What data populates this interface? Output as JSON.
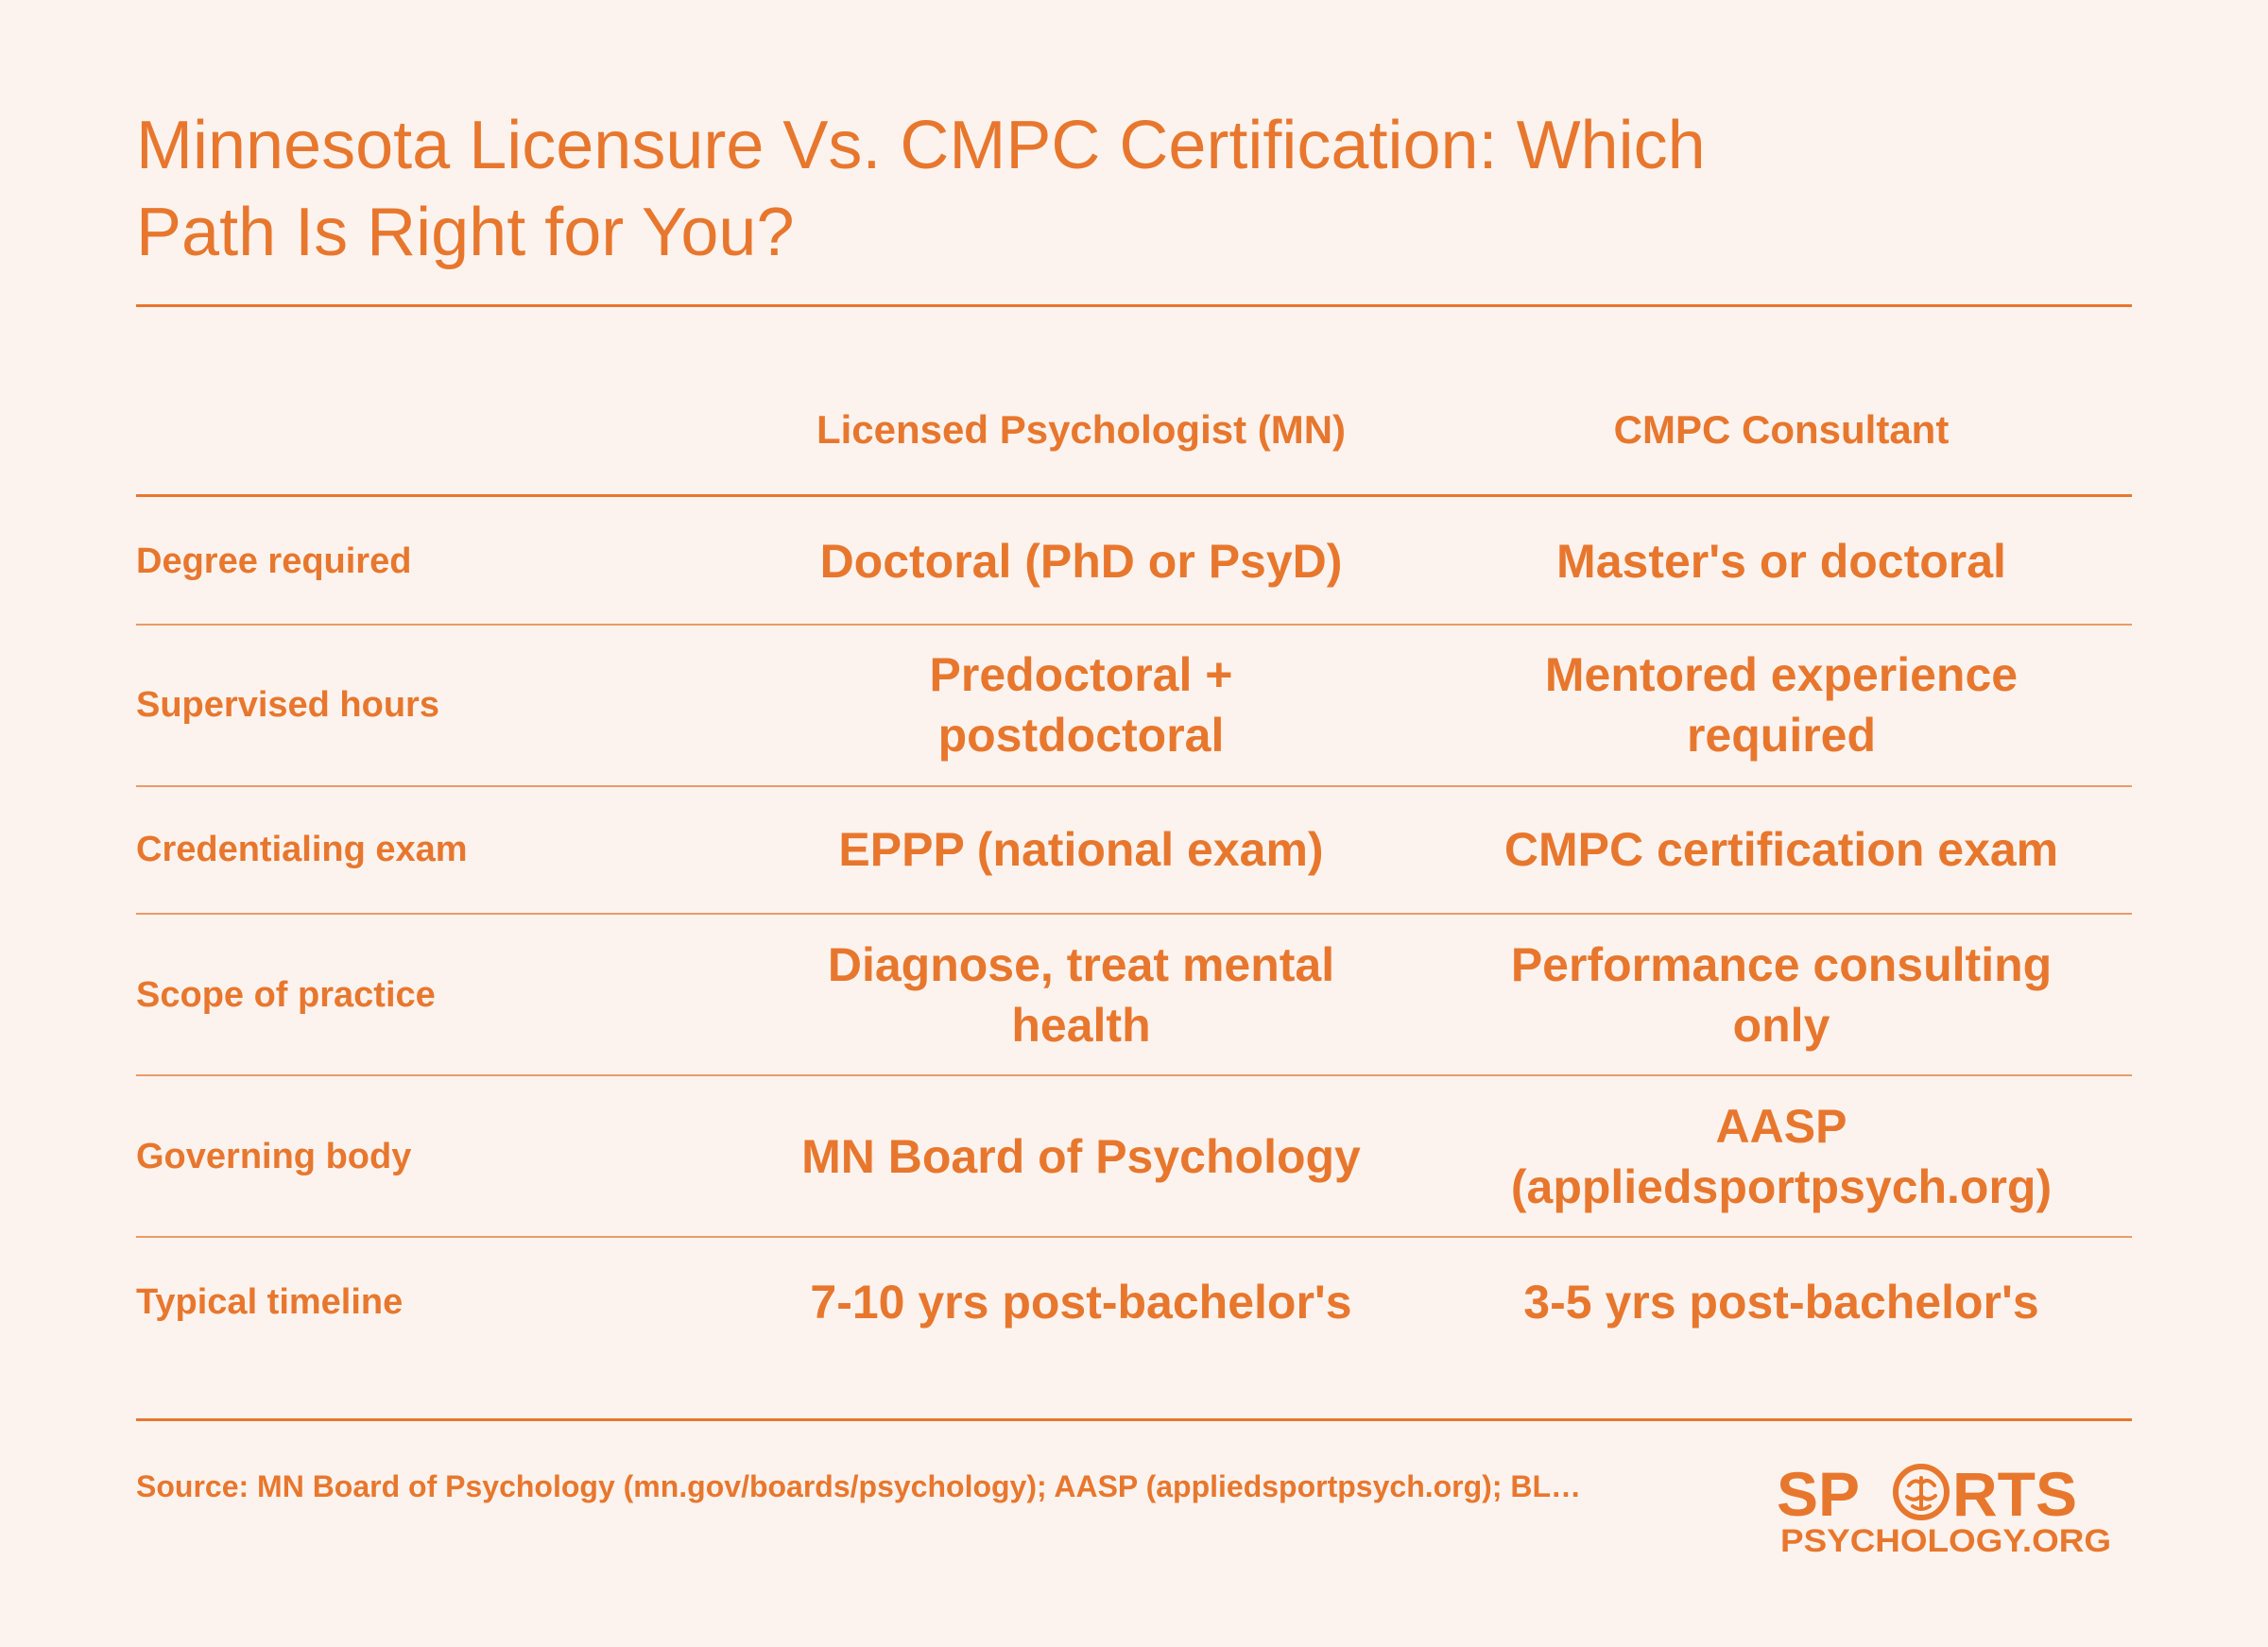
{
  "title": "Minnesota Licensure Vs. CMPC Certification: Which Path Is Right for You?",
  "columns": [
    "Licensed Psychologist (MN)",
    "CMPC Consultant"
  ],
  "rows": [
    {
      "label": "Degree required",
      "values": [
        "Doctoral (PhD or PsyD)",
        "Master's or doctoral"
      ]
    },
    {
      "label": "Supervised hours",
      "values": [
        "Predoctoral + postdoctoral",
        "Mentored experience required"
      ]
    },
    {
      "label": "Credentialing exam",
      "values": [
        "EPPP (national exam)",
        "CMPC certification exam"
      ]
    },
    {
      "label": "Scope of practice",
      "values": [
        "Diagnose, treat mental health",
        "Performance consulting only"
      ]
    },
    {
      "label": "Governing body",
      "values": [
        "MN Board of Psychology",
        "AASP (appliedsportpsych.org)"
      ]
    },
    {
      "label": "Typical timeline",
      "values": [
        "7-10 yrs post-bachelor's",
        "3-5 yrs post-bachelor's"
      ]
    }
  ],
  "source": "Source: MN Board of Psychology (mn.gov/boards/psychology); AASP (appliedsportpsych.org); BL…",
  "logo": {
    "line1_left": "SP",
    "line1_right": "RTS",
    "line2": "PSYCHOLOGY.ORG",
    "icon": "brain-icon"
  },
  "colors": {
    "background": "#fdf3ee",
    "accent": "#e8772e",
    "row_rule": "#eb9a66"
  }
}
